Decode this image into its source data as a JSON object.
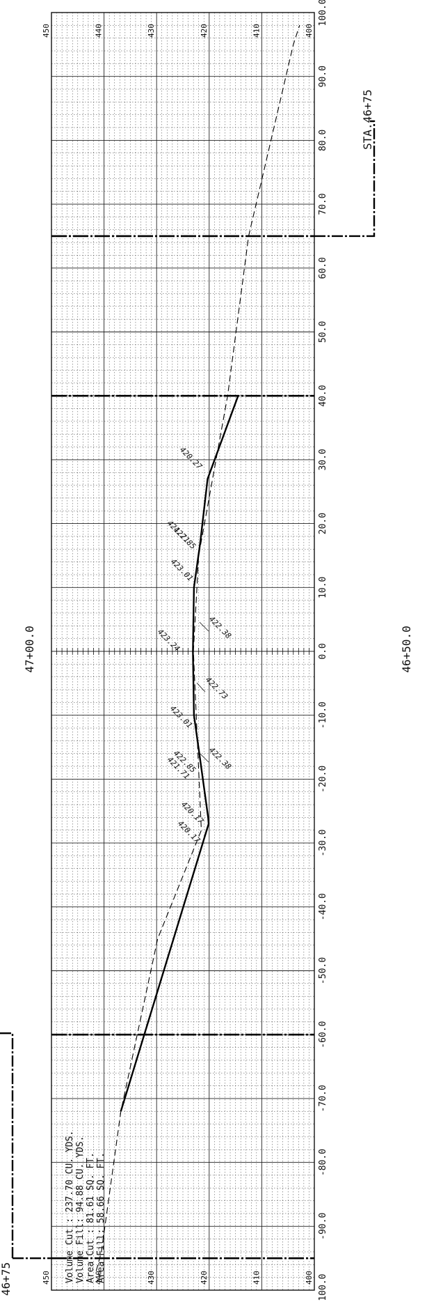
{
  "drawing": {
    "station_left": "46+75",
    "station_top": "STA.46+75",
    "station_upper_center": "47+00.0",
    "station_lower_center": "46+50.0"
  },
  "info_box": {
    "volume_cut": "Volume Cut :  237.70 CU. YDS.",
    "volume_fill": "Volume Fill:  94.88  CU. YDS.",
    "area_cut": "Area Cut :   81.61  SQ. FT.",
    "area_fill": "Area Fill:   58.66  SQ. FT."
  },
  "elevation_labels": {
    "top": [
      "450",
      "440",
      "430",
      "420",
      "410",
      "400"
    ],
    "bottom": [
      "450",
      "440",
      "430",
      "420",
      "410",
      "400"
    ]
  },
  "offset_labels": [
    "100.0",
    "90.0",
    "80.0",
    "70.0",
    "60.0",
    "50.0",
    "40.0",
    "30.0",
    "20.0",
    "10.0",
    "0.0",
    "-10.0",
    "-20.0",
    "-30.0",
    "-40.0",
    "-50.0",
    "-60.0",
    "-70.0",
    "-80.0",
    "-90.0",
    "-100.0"
  ],
  "point_labels": {
    "r1": "420.27",
    "r2": "421.71",
    "r3": "422.85",
    "r4": "423.01",
    "c1": "423.24",
    "c2": "422.38",
    "c3": "422.73",
    "l1": "423.01",
    "l2": "422.85",
    "l3": "421.71",
    "l4": "422.38",
    "l5": "420.17",
    "l6": "420.17"
  },
  "chart_data": {
    "type": "line",
    "xlabel": "",
    "ylabel": "",
    "xlim": [
      -100,
      100
    ],
    "ylim": [
      400,
      450
    ],
    "grid": true,
    "series": [
      {
        "style": "solid-bold",
        "x": [
          -72,
          -27,
          -26,
          -17,
          -10,
          0,
          10,
          17,
          27,
          40
        ],
        "y": [
          436.8,
          420.1,
          420.2,
          421.7,
          422.9,
          423.1,
          422.9,
          421.7,
          420.3,
          414.5
        ]
      },
      {
        "style": "dashed",
        "x": [
          -97,
          -94,
          -72,
          -45,
          -28,
          -15,
          0,
          15,
          40,
          65,
          95,
          98
        ],
        "y": [
          441.5,
          440.5,
          436.8,
          429.8,
          421.5,
          422.2,
          423.0,
          422.0,
          416.5,
          412.5,
          404.0,
          402.8
        ]
      }
    ],
    "markers": [
      {
        "x": -95,
        "ypos": "left",
        "direction": "down"
      },
      {
        "x": 65,
        "ypos": "left",
        "direction": "up"
      }
    ],
    "bold_verticals": [
      -95,
      -60,
      40,
      65
    ]
  }
}
